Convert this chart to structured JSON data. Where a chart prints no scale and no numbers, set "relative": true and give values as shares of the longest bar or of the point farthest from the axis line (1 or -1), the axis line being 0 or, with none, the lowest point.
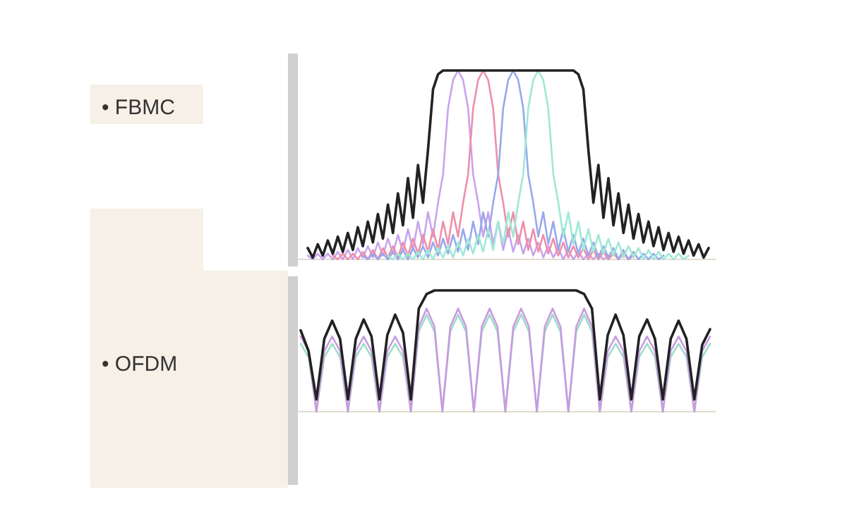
{
  "chart_data": [
    {
      "type": "line",
      "ylabel": "• FBMC",
      "relative": true,
      "categories": [
        null,
        null,
        null,
        null,
        null,
        null,
        null,
        null,
        null,
        null,
        null,
        null,
        null,
        null,
        null,
        null,
        null,
        null,
        null,
        null,
        null,
        null,
        null,
        null,
        null,
        null,
        null,
        null,
        null,
        null,
        null,
        null,
        null,
        null,
        null,
        null,
        null,
        null,
        null,
        null,
        null,
        null,
        null,
        null,
        null,
        null,
        null,
        null,
        null,
        null,
        null,
        null,
        null,
        null,
        null,
        null,
        null,
        null,
        null,
        null,
        null,
        null,
        null,
        null,
        null,
        null,
        null,
        null,
        null,
        null,
        null,
        null,
        null,
        null,
        null,
        null,
        null,
        null,
        null,
        null,
        null
      ],
      "series": [
        {
          "color": "#c9a3ec",
          "values": [
            0.02,
            0,
            0.03,
            0,
            0.03,
            0,
            0.04,
            0,
            0.05,
            0,
            0.06,
            0.01,
            0.07,
            0.01,
            0.09,
            0.02,
            0.11,
            0.03,
            0.13,
            0.04,
            0.16,
            0.05,
            0.2,
            0.08,
            0.25,
            0.12,
            0.3,
            0.45,
            0.8,
            0.95,
            1,
            0.95,
            0.8,
            0.45,
            0.3,
            0.12,
            0.25,
            0.08,
            0.2,
            0.05,
            0.16,
            0.04,
            0.13,
            0.03,
            0.11,
            0.02,
            0.09,
            0.01,
            0.07,
            0.01,
            0.06,
            0,
            0.05,
            0,
            0.04,
            0,
            0.03,
            0,
            0.03,
            0,
            0.02,
            null,
            null,
            null,
            null,
            null,
            null,
            null,
            null,
            null,
            null,
            null,
            null,
            null,
            null,
            null,
            null,
            null,
            null,
            null,
            null
          ]
        },
        {
          "color": "#ee8fa8",
          "values": [
            null,
            null,
            null,
            null,
            null,
            0.02,
            0,
            0.03,
            0,
            0.03,
            0,
            0.04,
            0,
            0.05,
            0,
            0.06,
            0.01,
            0.07,
            0.01,
            0.09,
            0.02,
            0.11,
            0.03,
            0.13,
            0.04,
            0.16,
            0.05,
            0.2,
            0.08,
            0.25,
            0.12,
            0.3,
            0.45,
            0.8,
            0.95,
            1,
            0.95,
            0.8,
            0.45,
            0.3,
            0.12,
            0.25,
            0.08,
            0.2,
            0.05,
            0.16,
            0.04,
            0.13,
            0.03,
            0.11,
            0.02,
            0.09,
            0.01,
            0.07,
            0.01,
            0.06,
            0,
            0.05,
            0,
            0.04,
            0,
            0.03,
            0,
            0.03,
            0,
            0.02,
            null,
            null,
            null,
            null,
            null,
            null,
            null,
            null,
            null,
            null,
            null,
            null,
            null,
            null,
            null
          ]
        },
        {
          "color": "#97a8ec",
          "values": [
            null,
            null,
            null,
            null,
            null,
            null,
            null,
            null,
            null,
            null,
            null,
            0.02,
            0,
            0.03,
            0,
            0.03,
            0,
            0.04,
            0,
            0.05,
            0,
            0.06,
            0.01,
            0.07,
            0.01,
            0.09,
            0.02,
            0.11,
            0.03,
            0.13,
            0.04,
            0.16,
            0.05,
            0.2,
            0.08,
            0.25,
            0.12,
            0.3,
            0.45,
            0.8,
            0.95,
            1,
            0.95,
            0.8,
            0.45,
            0.3,
            0.12,
            0.25,
            0.08,
            0.2,
            0.05,
            0.16,
            0.04,
            0.13,
            0.03,
            0.11,
            0.02,
            0.09,
            0.01,
            0.07,
            0.01,
            0.06,
            0,
            0.05,
            0,
            0.04,
            0,
            0.03,
            0,
            0.03,
            0,
            0.02,
            null,
            null,
            null,
            null,
            null,
            null,
            null,
            null,
            null
          ]
        },
        {
          "color": "#9fe8d6",
          "values": [
            null,
            null,
            null,
            null,
            null,
            null,
            null,
            null,
            null,
            null,
            null,
            null,
            null,
            null,
            null,
            null,
            0.02,
            0,
            0.03,
            0,
            0.03,
            0,
            0.04,
            0,
            0.05,
            0,
            0.06,
            0.01,
            0.07,
            0.01,
            0.09,
            0.02,
            0.11,
            0.03,
            0.13,
            0.04,
            0.16,
            0.05,
            0.2,
            0.08,
            0.25,
            0.12,
            0.3,
            0.45,
            0.8,
            0.95,
            1,
            0.95,
            0.8,
            0.45,
            0.3,
            0.12,
            0.25,
            0.08,
            0.2,
            0.05,
            0.16,
            0.04,
            0.13,
            0.03,
            0.11,
            0.02,
            0.09,
            0.01,
            0.07,
            0.01,
            0.06,
            0,
            0.05,
            0,
            0.04,
            0,
            0.03,
            0,
            0.03,
            0,
            0.02,
            null,
            null,
            null,
            null
          ]
        },
        {
          "color": "#222222",
          "values": [
            0.06,
            0.01,
            0.08,
            0.02,
            0.1,
            0.03,
            0.12,
            0.04,
            0.14,
            0.05,
            0.17,
            0.07,
            0.2,
            0.09,
            0.24,
            0.11,
            0.29,
            0.14,
            0.35,
            0.18,
            0.43,
            0.22,
            0.5,
            0.3,
            0.58,
            0.9,
            0.98,
            1,
            1,
            1,
            1,
            1,
            1,
            1,
            1,
            1,
            1,
            1,
            1,
            1,
            1,
            1,
            1,
            1,
            1,
            1,
            1,
            1,
            1,
            1,
            1,
            1,
            1,
            1,
            0.98,
            0.9,
            0.58,
            0.3,
            0.5,
            0.22,
            0.43,
            0.18,
            0.35,
            0.14,
            0.29,
            0.11,
            0.24,
            0.09,
            0.2,
            0.07,
            0.17,
            0.05,
            0.14,
            0.04,
            0.12,
            0.03,
            0.1,
            0.02,
            0.08,
            0.01,
            0.06
          ]
        }
      ]
    },
    {
      "type": "line",
      "ylabel": "• OFDM",
      "relative": true,
      "categories": [
        null,
        null,
        null,
        null,
        null,
        null,
        null,
        null,
        null,
        null,
        null,
        null,
        null,
        null,
        null,
        null,
        null,
        null,
        null,
        null,
        null,
        null,
        null,
        null,
        null,
        null,
        null,
        null,
        null,
        null,
        null,
        null,
        null,
        null,
        null,
        null,
        null,
        null,
        null,
        null,
        null,
        null,
        null,
        null,
        null,
        null,
        null,
        null,
        null,
        null,
        null,
        null,
        null
      ],
      "series": [
        {
          "color": "#9fdcc8",
          "values": [
            0.56,
            0.45,
            0,
            0.45,
            0.56,
            0.45,
            0,
            0.45,
            0.56,
            0.45,
            0,
            0.45,
            0.56,
            0.45,
            0,
            0.66,
            0.8,
            0.66,
            0,
            0.66,
            0.8,
            0.66,
            0,
            0.66,
            0.8,
            0.66,
            0,
            0.66,
            0.8,
            0.66,
            0,
            0.66,
            0.8,
            0.66,
            0,
            0.66,
            0.8,
            0.66,
            0,
            0.45,
            0.56,
            0.45,
            0,
            0.45,
            0.56,
            0.45,
            0,
            0.45,
            0.56,
            0.45,
            0,
            0.45,
            0.56
          ]
        },
        {
          "color": "#c79be0",
          "values": [
            0.62,
            0.5,
            0,
            0.5,
            0.62,
            0.5,
            0,
            0.5,
            0.62,
            0.5,
            0,
            0.5,
            0.62,
            0.5,
            0,
            0.7,
            0.85,
            0.7,
            0,
            0.7,
            0.85,
            0.7,
            0,
            0.7,
            0.85,
            0.7,
            0,
            0.7,
            0.85,
            0.7,
            0,
            0.7,
            0.85,
            0.7,
            0,
            0.7,
            0.85,
            0.7,
            0,
            0.5,
            0.62,
            0.5,
            0,
            0.5,
            0.62,
            0.5,
            0,
            0.5,
            0.62,
            0.5,
            0,
            0.5,
            0.62
          ]
        },
        {
          "color": "#222222",
          "values": [
            0.67,
            0.5,
            0.1,
            0.6,
            0.75,
            0.6,
            0.1,
            0.6,
            0.76,
            0.62,
            0.1,
            0.63,
            0.8,
            0.65,
            0.1,
            0.85,
            0.97,
            1,
            1,
            1,
            1,
            1,
            1,
            1,
            1,
            1,
            1,
            1,
            1,
            1,
            1,
            1,
            1,
            1,
            1,
            1,
            0.97,
            0.85,
            0.1,
            0.63,
            0.8,
            0.63,
            0.1,
            0.62,
            0.76,
            0.6,
            0.1,
            0.6,
            0.75,
            0.6,
            0.1,
            0.55,
            0.68
          ]
        }
      ]
    }
  ]
}
